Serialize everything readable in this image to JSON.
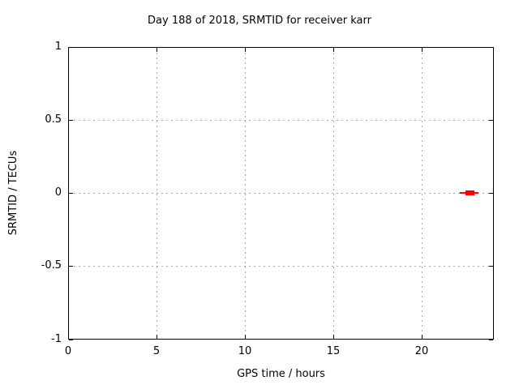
{
  "window": {
    "background": "#ffffff"
  },
  "chart_data": {
    "type": "scatter",
    "title": "Day 188 of 2018, SRMTID for receiver karr",
    "xlabel": "GPS time / hours",
    "ylabel": "SRMTID / TECUs",
    "xlim": [
      0,
      24
    ],
    "ylim": [
      -1,
      1
    ],
    "x_ticks": [
      0,
      5,
      10,
      15,
      20
    ],
    "y_ticks": [
      1,
      0.5,
      0,
      -0.5,
      -1
    ],
    "grid": true,
    "grid_color": "#a8a8a8",
    "axis_color": "#000000",
    "legend": "none",
    "series": [
      {
        "name": "SRMTID",
        "marker": "filled-square",
        "color": "#ff0000",
        "points_cluster": {
          "y": 0,
          "x_start": 22.15,
          "x_end": 23.2,
          "dense_x_start": 22.45,
          "dense_x_end": 22.95
        }
      }
    ]
  }
}
